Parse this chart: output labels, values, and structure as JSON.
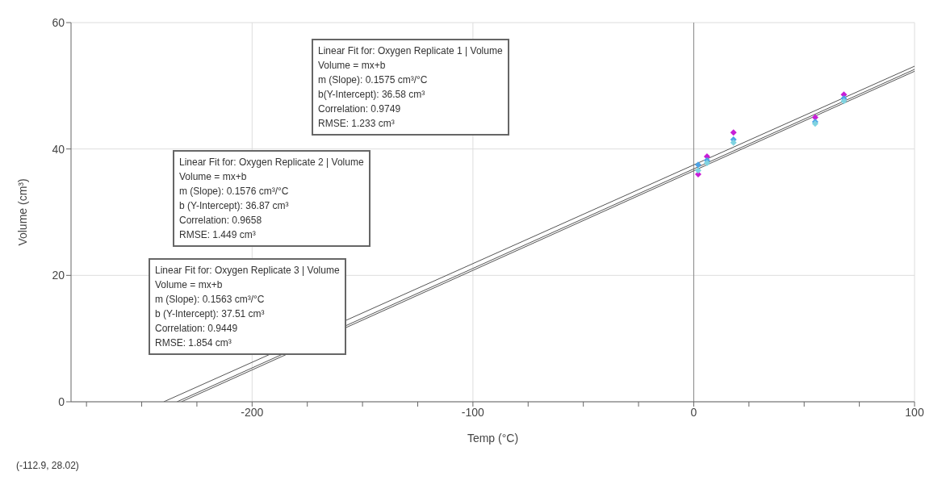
{
  "chart_data": {
    "type": "scatter",
    "xlabel": "Temp (°C)",
    "ylabel": "Volume (cm³)",
    "xlim": [
      -282,
      100
    ],
    "ylim": [
      0,
      60
    ],
    "xticks": [
      {
        "value": -275,
        "label": null
      },
      {
        "value": -250,
        "label": null
      },
      {
        "value": -225,
        "label": null
      },
      -200,
      {
        "value": -175,
        "label": null
      },
      {
        "value": -150,
        "label": null
      },
      {
        "value": -125,
        "label": null
      },
      -100,
      {
        "value": -75,
        "label": null
      },
      {
        "value": -50,
        "label": null
      },
      {
        "value": -25,
        "label": null
      },
      0,
      {
        "value": 25,
        "label": null
      },
      {
        "value": 50,
        "label": null
      },
      {
        "value": 75,
        "label": null
      },
      100
    ],
    "yticks": [
      0,
      20,
      40,
      60
    ],
    "grid": true,
    "legend": false,
    "marker": "diamond",
    "series": [
      {
        "color": "#c81ed6",
        "x": [
          2,
          6,
          18,
          55,
          68
        ],
        "values": [
          36.0,
          38.8,
          42.6,
          45.0,
          48.6
        ]
      },
      {
        "color": "#4ea3e6",
        "x": [
          2,
          6,
          18,
          55,
          68
        ],
        "values": [
          37.5,
          38.2,
          41.5,
          44.3,
          48.0
        ]
      },
      {
        "color": "#7fd3e0",
        "x": [
          2,
          6,
          18,
          55,
          68
        ],
        "values": [
          36.6,
          37.8,
          41.0,
          44.0,
          47.6
        ]
      },
      {
        "type": "line",
        "marker": "none",
        "color": "#555555",
        "x": [
          -232,
          100
        ],
        "values": [
          0,
          52.3
        ]
      },
      {
        "type": "line",
        "marker": "none",
        "color": "#555555",
        "x": [
          -234,
          100
        ],
        "values": [
          0,
          52.6
        ]
      },
      {
        "type": "line",
        "marker": "none",
        "color": "#555555",
        "x": [
          -240,
          100
        ],
        "values": [
          0,
          53.1
        ]
      }
    ],
    "ref_lines": [
      {
        "axis": "x",
        "value": 0,
        "color": "#888888"
      }
    ],
    "annotations": [
      "Linear Fit for: Oxygen Replicate 1 | Volume\nVolume = mx+b\nm (Slope): 0.1575 cm³/°C\nb(Y-Intercept): 36.58 cm³\nCorrelation: 0.9749\nRMSE: 1.233 cm³",
      "Linear Fit for: Oxygen Replicate 2 | Volume\nVolume = mx+b\nm (Slope): 0.1576 cm³/°C\nb (Y-Intercept): 36.87 cm³\nCorrelation: 0.9658\nRMSE: 1.449 cm³",
      "Linear Fit for: Oxygen Replicate 3 | Volume\nVolume = mx+b\nm (Slope): 0.1563 cm³/°C\nb (Y-Intercept): 37.51 cm³\nCorrelation: 0.9449\nRMSE: 1.854 cm³",
      "(-112.9, 28.02)"
    ]
  }
}
